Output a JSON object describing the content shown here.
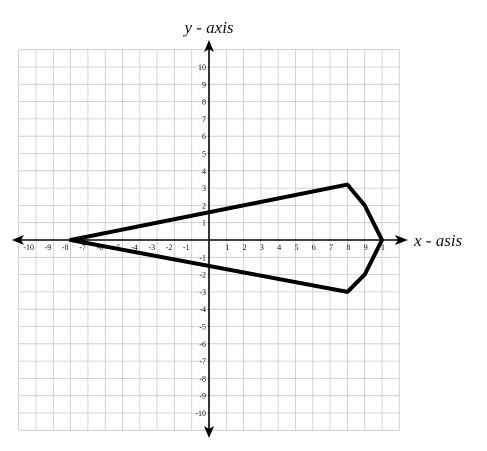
{
  "chart_data": {
    "type": "line",
    "xlabel": "x - asis",
    "ylabel": "y - axis",
    "xlim": [
      -11,
      11
    ],
    "ylim": [
      -11,
      11
    ],
    "grid": true,
    "x_ticks": [
      "-10",
      "-9",
      "-8",
      "-7",
      "-6",
      "-5",
      "-4",
      "-3",
      "-2",
      "-1",
      "1",
      "2",
      "3",
      "4",
      "5",
      "6",
      "7",
      "8",
      "9",
      "1"
    ],
    "y_ticks": [
      "10",
      "9",
      "8",
      "7",
      "6",
      "5",
      "4",
      "3",
      "2",
      "1",
      "-1",
      "-2",
      "-3",
      "-4",
      "-5",
      "-6",
      "-7",
      "-8",
      "-9",
      "-10"
    ],
    "series": [
      {
        "closed": true,
        "points": [
          {
            "x": -8,
            "y": 0
          },
          {
            "x": 8,
            "y": 3.2
          },
          {
            "x": 9,
            "y": 2
          },
          {
            "x": 10,
            "y": 0
          },
          {
            "x": 9,
            "y": -2
          },
          {
            "x": 8,
            "y": -3
          }
        ]
      }
    ]
  },
  "colors": {
    "grid": "#c8c8c8",
    "axis": "#000000",
    "shape": "#000000"
  }
}
